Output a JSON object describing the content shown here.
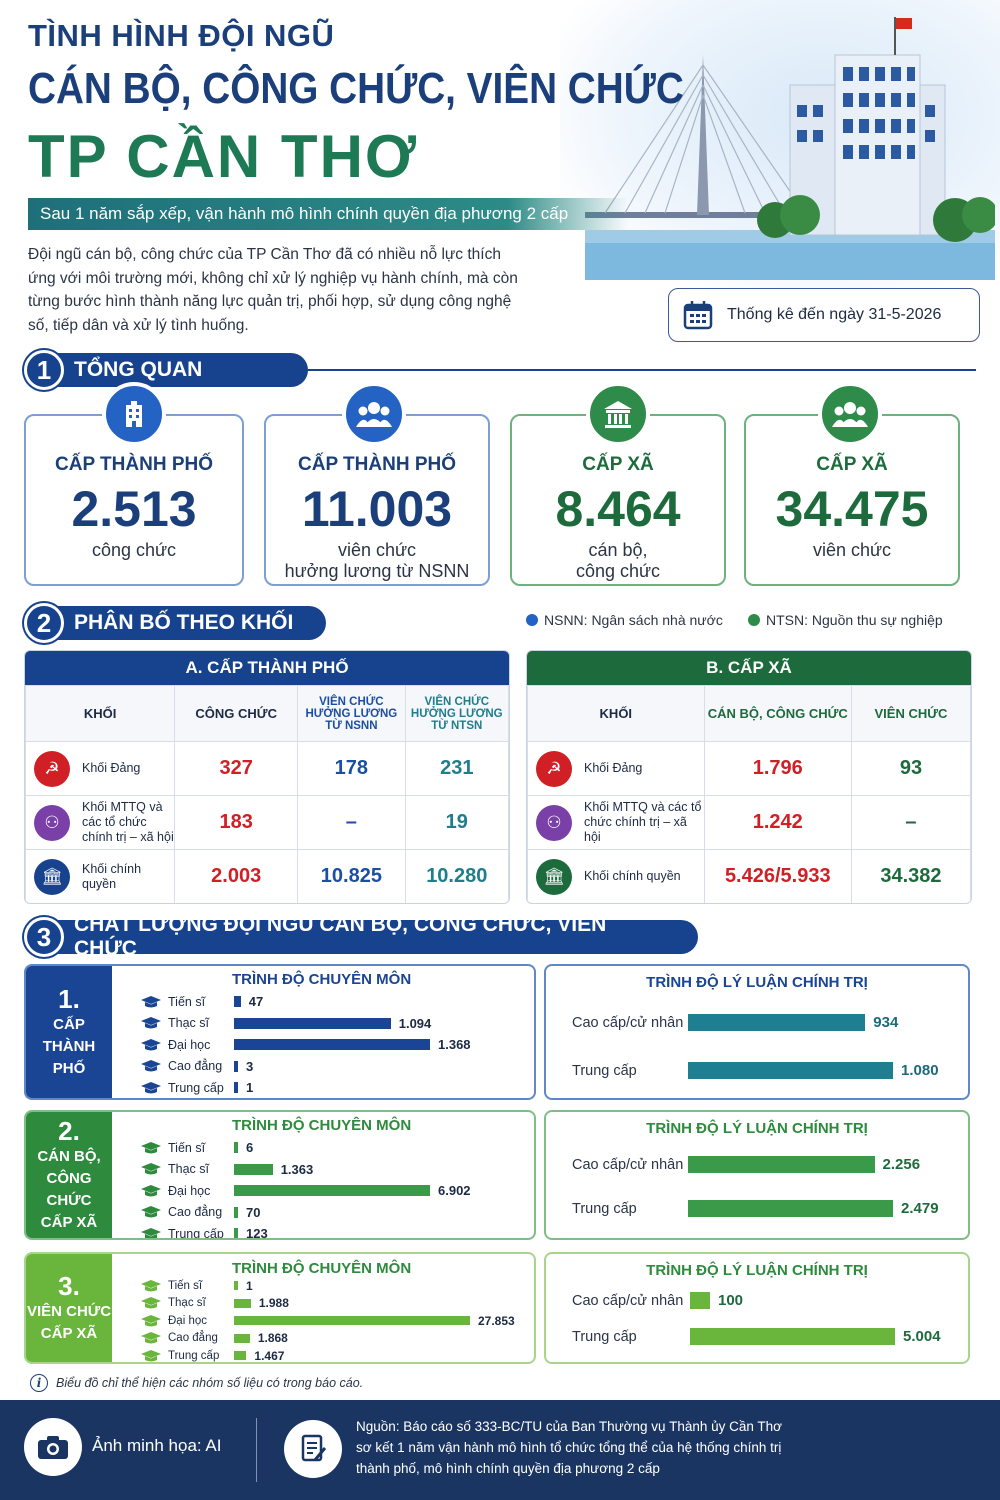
{
  "header": {
    "line1": "TÌNH HÌNH ĐỘI NGŨ",
    "line2": "CÁN BỘ, CÔNG CHỨC, VIÊN CHỨC",
    "line3": "TP CẦN THƠ",
    "subtitle": "Sau 1 năm sắp xếp, vận hành mô hình chính quyền địa phương 2 cấp",
    "intro": "Đội ngũ cán bộ, công chức của TP Cần Thơ đã có nhiều nỗ lực thích ứng với môi trường mới, không chỉ xử lý nghiệp vụ hành chính, mà còn từng bước hình thành năng lực quản trị, phối hợp, sử dụng công nghệ số, tiếp dân và xử lý tình huống.",
    "date": "Thống kê đến ngày 31-5-2026"
  },
  "sections": {
    "s1": {
      "num": "1",
      "title": "TỔNG QUAN"
    },
    "s2": {
      "num": "2",
      "title": "PHÂN BỐ THEO KHỐI"
    },
    "s3": {
      "num": "3",
      "title": "CHẤT LƯỢNG ĐỘI NGŨ CÁN BỘ, CÔNG CHỨC, VIÊN CHỨC"
    }
  },
  "overview": [
    {
      "label": "CẤP THÀNH PHỐ",
      "value": "2.513",
      "caption1": "công chức",
      "caption2": "",
      "icon": "building-icon"
    },
    {
      "label": "CẤP THÀNH PHỐ",
      "value": "11.003",
      "caption1": "viên chức",
      "caption2": "hưởng lương từ NSNN",
      "icon": "people-icon"
    },
    {
      "label": "CẤP XÃ",
      "value": "8.464",
      "caption1": "cán bộ,",
      "caption2": "công chức",
      "icon": "office-icon"
    },
    {
      "label": "CẤP XÃ",
      "value": "34.475",
      "caption1": "viên chức",
      "caption2": "",
      "icon": "people-icon"
    }
  ],
  "legend": {
    "nsnn": "NSNN: Ngân sách nhà nước",
    "ntsn": "NTSN: Nguồn thu sự nghiệp"
  },
  "tableA": {
    "title": "A. CẤP THÀNH PHỐ",
    "headers": [
      "KHỐI",
      "CÔNG CHỨC",
      "VIÊN CHỨC HƯỞNG LƯƠNG TỪ NSNN",
      "VIÊN CHỨC HƯỞNG LƯƠNG TỪ NTSN"
    ],
    "rows": [
      {
        "khoi": "Khối Đảng",
        "c1": "327",
        "c2": "178",
        "c3": "231"
      },
      {
        "khoi": "Khối MTTQ và các tổ chức chính trị – xã hội",
        "c1": "183",
        "c2": "–",
        "c3": "19"
      },
      {
        "khoi": "Khối chính quyền",
        "c1": "2.003",
        "c2": "10.825",
        "c3": "10.280"
      }
    ]
  },
  "tableB": {
    "title": "B. CẤP XÃ",
    "headers": [
      "KHỐI",
      "CÁN BỘ, CÔNG CHỨC",
      "VIÊN CHỨC"
    ],
    "rows": [
      {
        "khoi": "Khối Đảng",
        "c1": "1.796",
        "c2": "93"
      },
      {
        "khoi": "Khối MTTQ và các tổ chức chính trị – xã hội",
        "c1": "1.242",
        "c2": "–"
      },
      {
        "khoi": "Khối chính quyền",
        "c1": "5.426/5.933",
        "c2": "34.382"
      }
    ]
  },
  "quality": {
    "chuyenmon_title": "TRÌNH ĐỘ CHUYÊN MÔN",
    "lyluan_title": "TRÌNH ĐỘ LÝ LUẬN CHÍNH TRỊ",
    "groups": [
      {
        "num": "1.",
        "label1": "CẤP",
        "label2": "THÀNH",
        "label3": "PHỐ",
        "color": "#1a4594",
        "chuyenmon": [
          {
            "name": "Tiến sĩ",
            "value": "47",
            "n": 47
          },
          {
            "name": "Thạc sĩ",
            "value": "1.094",
            "n": 1094
          },
          {
            "name": "Đại học",
            "value": "1.368",
            "n": 1368
          },
          {
            "name": "Cao đẳng",
            "value": "3",
            "n": 3
          },
          {
            "name": "Trung cấp",
            "value": "1",
            "n": 1
          }
        ],
        "lyluan": [
          {
            "name": "Cao cấp/cử nhân",
            "value": "934",
            "n": 934
          },
          {
            "name": "Trung cấp",
            "value": "1.080",
            "n": 1080
          }
        ]
      },
      {
        "num": "2.",
        "label1": "CÁN BỘ,",
        "label2": "CÔNG CHỨC",
        "label3": "CẤP XÃ",
        "color": "#2e8b3e",
        "chuyenmon": [
          {
            "name": "Tiến sĩ",
            "value": "6",
            "n": 6
          },
          {
            "name": "Thạc sĩ",
            "value": "1.363",
            "n": 1363
          },
          {
            "name": "Đại học",
            "value": "6.902",
            "n": 6902
          },
          {
            "name": "Cao đẳng",
            "value": "70",
            "n": 70
          },
          {
            "name": "Trung cấp",
            "value": "123",
            "n": 123
          }
        ],
        "lyluan": [
          {
            "name": "Cao cấp/cử nhân",
            "value": "2.256",
            "n": 2256
          },
          {
            "name": "Trung cấp",
            "value": "2.479",
            "n": 2479
          }
        ]
      },
      {
        "num": "3.",
        "label1": "VIÊN CHỨC",
        "label2": "CẤP XÃ",
        "label3": "",
        "color": "#6ab53c",
        "chuyenmon": [
          {
            "name": "Tiến sĩ",
            "value": "1",
            "n": 1
          },
          {
            "name": "Thạc sĩ",
            "value": "1.988",
            "n": 1988
          },
          {
            "name": "Đại học",
            "value": "27.853",
            "n": 27853
          },
          {
            "name": "Cao đẳng",
            "value": "1.868",
            "n": 1868
          },
          {
            "name": "Trung cấp",
            "value": "1.467",
            "n": 1467
          }
        ],
        "lyluan": [
          {
            "name": "Cao cấp/cử nhân",
            "value": "100",
            "n": 100
          },
          {
            "name": "Trung cấp",
            "value": "5.004",
            "n": 5004
          }
        ]
      }
    ],
    "note": "Biểu đồ chỉ thể hiện các nhóm số liệu có trong báo cáo."
  },
  "footer": {
    "photo": "Ảnh minh họa: AI",
    "source1": "Nguồn: Báo cáo số 333-BC/TU của Ban Thường vụ Thành ủy Cần Thơ",
    "source2": "sơ kết 1 năm vận hành mô hình tổ chức tổng thể của hệ thống chính trị",
    "source3": "thành phố, mô hình chính quyền địa phương 2 cấp"
  },
  "colors": {
    "blue": "#17428e",
    "green": "#1d6b3c",
    "teal": "#1e7e8c",
    "red": "#d02026"
  }
}
